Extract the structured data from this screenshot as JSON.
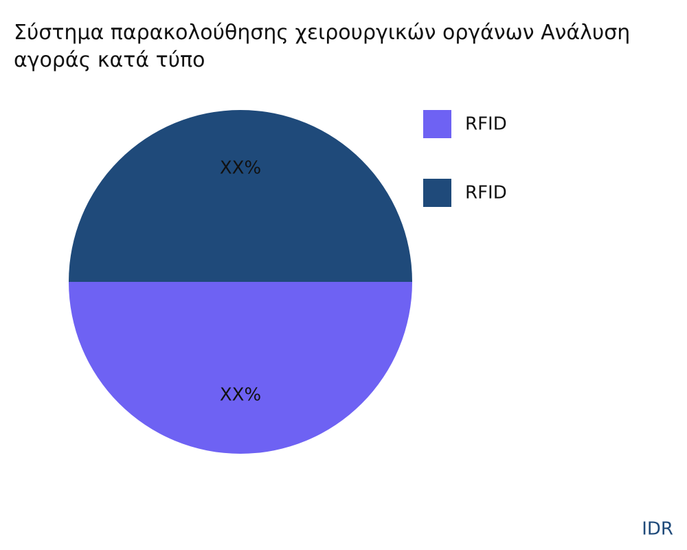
{
  "chart_data": {
    "type": "pie",
    "title": "Σύστημα παρακολούθησης χειρουργικών οργάνων Ανάλυση\nαγοράς κατά τύπο",
    "categories": [
      "RFID",
      "RFID"
    ],
    "values": [
      50,
      50
    ],
    "value_labels": [
      "XX%",
      "XX%"
    ],
    "colors": [
      "#6e62f3",
      "#1f4a7a"
    ],
    "legend": "top-right",
    "watermark": "IDR"
  }
}
